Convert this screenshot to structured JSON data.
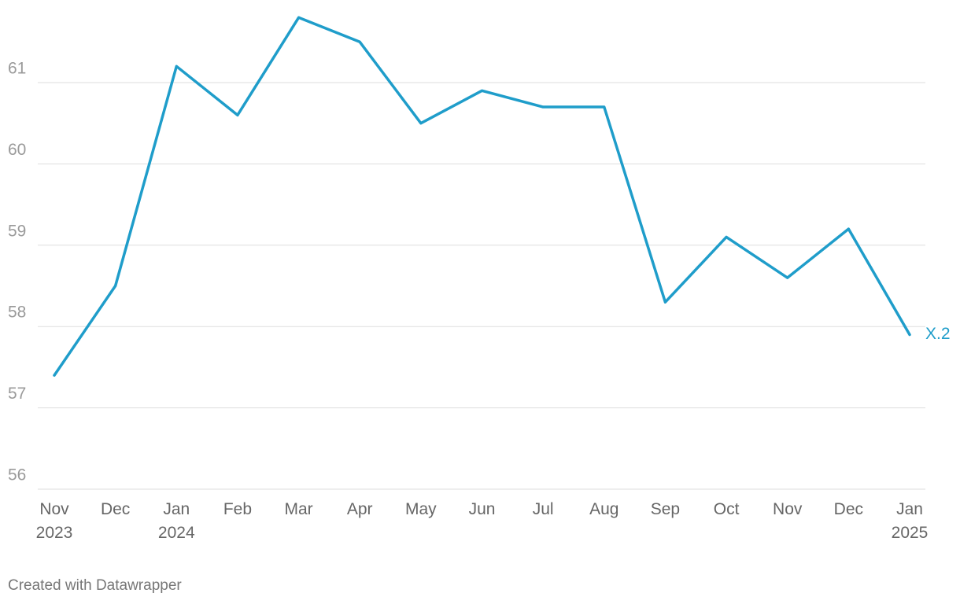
{
  "chart_data": {
    "type": "line",
    "categories": [
      "Nov\n2023",
      "Dec",
      "Jan\n2024",
      "Feb",
      "Mar",
      "Apr",
      "May",
      "Jun",
      "Jul",
      "Aug",
      "Sep",
      "Oct",
      "Nov",
      "Dec",
      "Jan\n2025"
    ],
    "values": [
      57.4,
      58.5,
      61.2,
      60.6,
      61.8,
      61.5,
      60.5,
      60.9,
      60.7,
      60.7,
      58.3,
      59.1,
      58.6,
      59.2,
      57.9
    ],
    "color": "#1f9dca",
    "end_label": "X.2",
    "ylim": [
      56,
      62
    ],
    "yticks": [
      56,
      57,
      58,
      59,
      60,
      61
    ],
    "grid": true,
    "footer": "Created with Datawrapper"
  }
}
